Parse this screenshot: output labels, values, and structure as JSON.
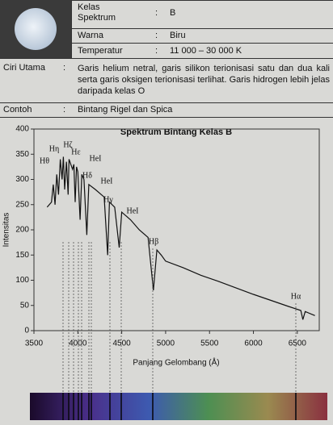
{
  "star_table": {
    "separator": ":",
    "rows": [
      {
        "label": "Kelas Spektrum",
        "value": "B"
      },
      {
        "label": "Warna",
        "value": "Biru"
      },
      {
        "label": "Temperatur",
        "value": "11 000 – 30 000 K"
      }
    ]
  },
  "features": {
    "label": "Ciri Utama",
    "text": "Garis helium netral, garis silikon terionisasi satu dan dua kali serta garis oksigen terionisasi terlihat. Garis hidrogen lebih jelas daripada kelas O"
  },
  "example": {
    "label": "Contoh",
    "text": "Bintang Rigel dan Spica"
  },
  "chart_data": {
    "type": "line",
    "title": "Spektrum Bintang Kelas B",
    "x_label": "Panjang Gelombang (Å)",
    "y_label": "Intensitas",
    "x": [
      3650,
      3700,
      3720,
      3740,
      3760,
      3780,
      3800,
      3820,
      3835,
      3850,
      3870,
      3889,
      3900,
      3920,
      3940,
      3955,
      3970,
      3985,
      4000,
      4026,
      4045,
      4070,
      4102,
      4125,
      4200,
      4300,
      4340,
      4360,
      4420,
      4471,
      4500,
      4600,
      4700,
      4800,
      4861,
      4900,
      4950,
      5000,
      5200,
      5400,
      5600,
      5800,
      6000,
      6200,
      6400,
      6540,
      6563,
      6590,
      6700
    ],
    "values": [
      245,
      255,
      290,
      250,
      310,
      270,
      340,
      300,
      345,
      280,
      335,
      270,
      340,
      330,
      320,
      330,
      255,
      325,
      315,
      220,
      310,
      300,
      190,
      290,
      280,
      265,
      150,
      255,
      245,
      165,
      235,
      220,
      200,
      185,
      80,
      160,
      150,
      138,
      125,
      110,
      98,
      85,
      72,
      60,
      48,
      40,
      22,
      38,
      30
    ],
    "color": "#111111",
    "xlim": [
      3500,
      6750
    ],
    "ylim": [
      0,
      400
    ],
    "xticks": [
      3500,
      4000,
      4500,
      5000,
      5500,
      6000,
      6500
    ],
    "yticks": [
      0,
      50,
      100,
      150,
      200,
      250,
      300,
      350,
      400
    ],
    "annotations": [
      "Hθ",
      "Hη",
      "Hζ",
      "Hε",
      "HeI",
      "Hδ",
      "HeI",
      "Hγ",
      "HeI",
      "Hβ",
      "Hα"
    ]
  }
}
